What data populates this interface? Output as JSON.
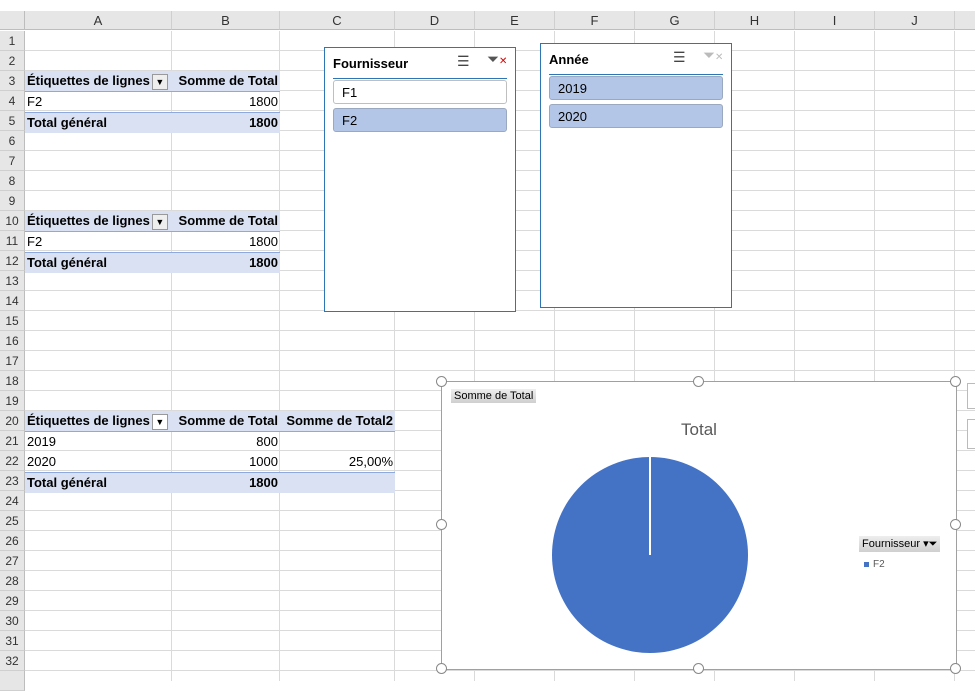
{
  "columns": [
    "A",
    "B",
    "C",
    "D",
    "E",
    "F",
    "G",
    "H",
    "I",
    "J"
  ],
  "rows": [
    "1",
    "2",
    "3",
    "4",
    "5",
    "6",
    "7",
    "8",
    "9",
    "10",
    "11",
    "12",
    "13",
    "14",
    "15",
    "16",
    "17",
    "18",
    "19",
    "20",
    "21",
    "22",
    "23",
    "24",
    "25",
    "26",
    "27",
    "28",
    "29",
    "30",
    "31",
    "32"
  ],
  "pivot1": {
    "row_label": "Étiquettes de lignes",
    "value_label": "Somme de Total",
    "items": [
      {
        "label": "F2",
        "value": "1800"
      }
    ],
    "total_label": "Total général",
    "total": "1800"
  },
  "pivot2": {
    "row_label": "Étiquettes de lignes",
    "value_label": "Somme de Total",
    "items": [
      {
        "label": "F2",
        "value": "1800"
      }
    ],
    "total_label": "Total général",
    "total": "1800"
  },
  "pivot3": {
    "row_label": "Étiquettes de lignes",
    "value_label": "Somme de Total",
    "value2_label": "Somme de Total2",
    "items": [
      {
        "label": "2019",
        "value": "800",
        "value2": ""
      },
      {
        "label": "2020",
        "value": "1000",
        "value2": "25,00%"
      }
    ],
    "total_label": "Total général",
    "total": "1800"
  },
  "slicer_fournisseur": {
    "title": "Fournisseur",
    "items": [
      {
        "label": "F1",
        "selected": false
      },
      {
        "label": "F2",
        "selected": true
      }
    ]
  },
  "slicer_annee": {
    "title": "Année",
    "items": [
      {
        "label": "2019",
        "selected": true
      },
      {
        "label": "2020",
        "selected": true
      }
    ]
  },
  "chart_data": {
    "type": "pie",
    "title": "Total",
    "field_button": "Somme de Total",
    "legend_title": "Fournisseur",
    "legend_position": "right",
    "categories": [
      "F2"
    ],
    "values": [
      1800
    ],
    "colors": [
      "#4472c4"
    ]
  }
}
